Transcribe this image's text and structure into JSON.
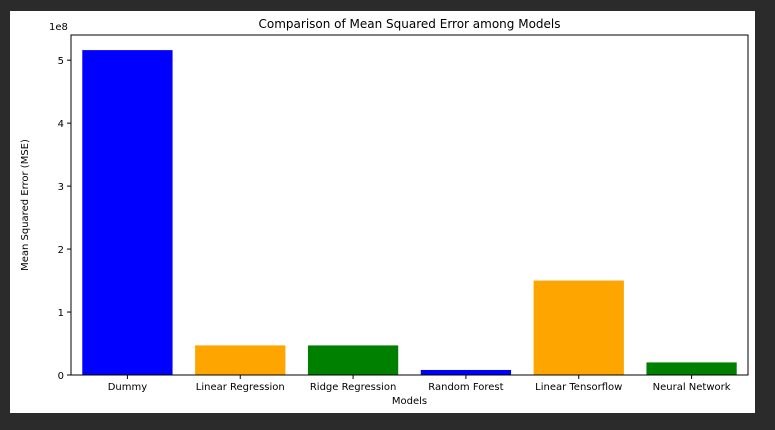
{
  "chart_data": {
    "type": "bar",
    "title": "Comparison of Mean Squared Error among Models",
    "xlabel": "Models",
    "ylabel": "Mean Squared Error (MSE)",
    "y_offset_label": "1e8",
    "categories": [
      "Dummy",
      "Linear Regression",
      "Ridge Regression",
      "Random Forest",
      "Linear Tensorflow",
      "Neural Network"
    ],
    "values": [
      516000000,
      47000000,
      47000000,
      8000000,
      150000000,
      20000000
    ],
    "colors": [
      "#0000ff",
      "#ffa500",
      "#008000",
      "#0000ff",
      "#ffa500",
      "#008000"
    ],
    "ylim": [
      0,
      540000000
    ],
    "yticks": [
      0,
      100000000,
      200000000,
      300000000,
      400000000,
      500000000
    ],
    "ytick_labels": [
      "0",
      "1",
      "2",
      "3",
      "4",
      "5"
    ],
    "grid": false
  }
}
